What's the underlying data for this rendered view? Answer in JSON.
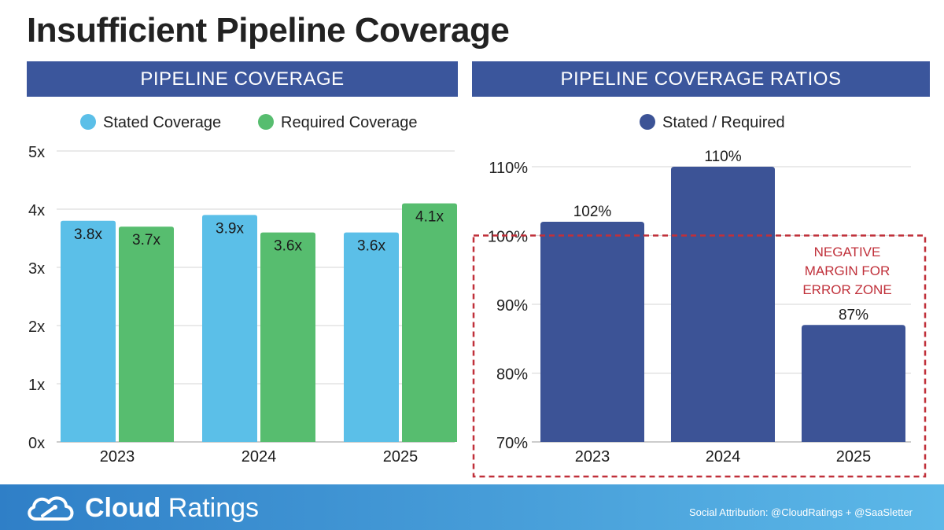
{
  "title": "Insufficient Pipeline Coverage",
  "colors": {
    "header_bg": "#3b569c",
    "stated": "#5bbfe8",
    "required": "#57bd6f",
    "ratio": "#3c5396",
    "danger": "#c0303a",
    "grid": "#dddddd",
    "footer_from": "#2f7fc7",
    "footer_to": "#5cb8e8"
  },
  "chart_data": [
    {
      "name": "pipeline-coverage",
      "type": "bar",
      "title": "PIPELINE COVERAGE",
      "categories": [
        "2023",
        "2024",
        "2025"
      ],
      "series": [
        {
          "name": "Stated Coverage",
          "values": [
            3.8,
            3.9,
            3.6
          ],
          "labels": [
            "3.8x",
            "3.9x",
            "3.6x"
          ]
        },
        {
          "name": "Required Coverage",
          "values": [
            3.7,
            3.6,
            4.1
          ],
          "labels": [
            "3.7x",
            "3.6x",
            "4.1x"
          ]
        }
      ],
      "y_ticks": [
        0,
        1,
        2,
        3,
        4,
        5
      ],
      "y_tick_labels": [
        "0x",
        "1x",
        "2x",
        "3x",
        "4x",
        "5x"
      ],
      "ylim": [
        0,
        5
      ],
      "xlabel": "",
      "ylabel": "",
      "grid": true,
      "legend": "top"
    },
    {
      "name": "pipeline-coverage-ratios",
      "type": "bar",
      "title": "PIPELINE COVERAGE RATIOS",
      "categories": [
        "2023",
        "2024",
        "2025"
      ],
      "series": [
        {
          "name": "Stated / Required",
          "values": [
            102,
            110,
            87
          ],
          "labels": [
            "102%",
            "110%",
            "87%"
          ]
        }
      ],
      "y_ticks": [
        70,
        80,
        90,
        100,
        110
      ],
      "y_tick_labels": [
        "70%",
        "80%",
        "90%",
        "100%",
        "110%"
      ],
      "ylim": [
        70,
        110
      ],
      "xlabel": "",
      "ylabel": "",
      "grid": true,
      "legend": "top",
      "annotation": {
        "lines": [
          "NEGATIVE",
          "MARGIN FOR",
          "ERROR ZONE"
        ],
        "y_from": 70,
        "y_to": 100
      }
    }
  ],
  "footer": {
    "brand_bold": "Cloud",
    "brand_light": " Ratings",
    "attribution": "Social Attribution: @CloudRatings + @SaaSletter"
  }
}
